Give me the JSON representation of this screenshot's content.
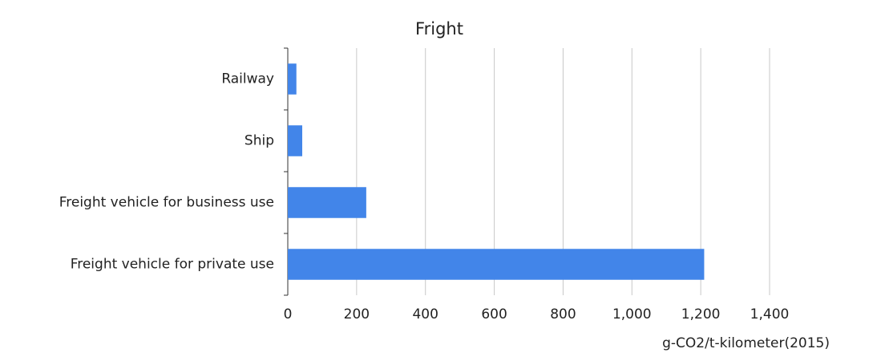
{
  "chart_data": {
    "type": "hbar",
    "title": "Fright",
    "categories": [
      "Railway",
      "Ship",
      "Freight vehicle for business use",
      "Freight vehicle for private use"
    ],
    "values": [
      25,
      42,
      228,
      1210
    ],
    "color": "#4285e9",
    "xlabel": "g-CO2/t-kilometer(2015)",
    "xlim": [
      0,
      1400
    ],
    "xticks": [
      0,
      200,
      400,
      600,
      800,
      {
        "value": 1000,
        "label": "1,000"
      },
      {
        "value": 1200,
        "label": "1,200"
      },
      {
        "value": 1400,
        "label": "1,400"
      }
    ],
    "grid": true
  }
}
